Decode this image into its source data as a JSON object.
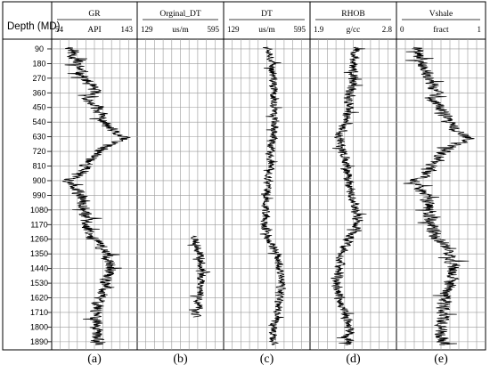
{
  "chart_data": {
    "type": "line",
    "depth_axis": {
      "label": "Depth (MD)",
      "ticks": [
        90,
        180,
        270,
        360,
        450,
        540,
        630,
        720,
        810,
        900,
        990,
        1080,
        1170,
        1260,
        1350,
        1440,
        1530,
        1620,
        1710,
        1800,
        1890
      ],
      "range": [
        30,
        1940
      ],
      "direction": "down"
    },
    "tracks": [
      {
        "id": "a",
        "caption": "(a)",
        "header": {
          "name": "GR",
          "min": "54",
          "unit": "API",
          "max": "143"
        },
        "xlim": [
          54,
          143
        ],
        "depth_range": [
          80,
          1910
        ],
        "profile": [
          [
            80,
            74
          ],
          [
            180,
            80
          ],
          [
            270,
            88
          ],
          [
            360,
            100
          ],
          [
            400,
            88
          ],
          [
            450,
            102
          ],
          [
            540,
            108
          ],
          [
            600,
            118
          ],
          [
            640,
            130
          ],
          [
            700,
            106
          ],
          [
            810,
            90
          ],
          [
            870,
            84
          ],
          [
            900,
            70
          ],
          [
            990,
            84
          ],
          [
            1080,
            90
          ],
          [
            1170,
            90
          ],
          [
            1260,
            98
          ],
          [
            1350,
            112
          ],
          [
            1440,
            114
          ],
          [
            1530,
            110
          ],
          [
            1620,
            104
          ],
          [
            1710,
            102
          ],
          [
            1800,
            100
          ],
          [
            1910,
            102
          ]
        ],
        "noise": 9,
        "seed": 11
      },
      {
        "id": "b",
        "caption": "(b)",
        "header": {
          "name": "Orginal_DT",
          "min": "129",
          "unit": "us/m",
          "max": "595"
        },
        "xlim": [
          129,
          595
        ],
        "depth_range": [
          1240,
          1740
        ],
        "profile": [
          [
            1240,
            440
          ],
          [
            1300,
            450
          ],
          [
            1350,
            470
          ],
          [
            1440,
            480
          ],
          [
            1530,
            475
          ],
          [
            1600,
            470
          ],
          [
            1660,
            455
          ],
          [
            1740,
            445
          ]
        ],
        "noise": 32,
        "seed": 23
      },
      {
        "id": "c",
        "caption": "(c)",
        "header": {
          "name": "DT",
          "min": "129",
          "unit": "us/m",
          "max": "595"
        },
        "xlim": [
          129,
          595
        ],
        "depth_range": [
          80,
          1910
        ],
        "profile": [
          [
            80,
            380
          ],
          [
            180,
            390
          ],
          [
            270,
            395
          ],
          [
            360,
            400
          ],
          [
            450,
            395
          ],
          [
            540,
            410
          ],
          [
            630,
            400
          ],
          [
            720,
            380
          ],
          [
            810,
            380
          ],
          [
            900,
            370
          ],
          [
            990,
            360
          ],
          [
            1080,
            355
          ],
          [
            1170,
            345
          ],
          [
            1260,
            370
          ],
          [
            1350,
            420
          ],
          [
            1440,
            430
          ],
          [
            1530,
            440
          ],
          [
            1620,
            430
          ],
          [
            1710,
            420
          ],
          [
            1800,
            400
          ],
          [
            1910,
            400
          ]
        ],
        "noise": 30,
        "seed": 37
      },
      {
        "id": "d",
        "caption": "(d)",
        "header": {
          "name": "RHOB",
          "min": "1.9",
          "unit": "g/cc",
          "max": "2.8"
        },
        "xlim": [
          1.9,
          2.8
        ],
        "depth_range": [
          80,
          1910
        ],
        "profile": [
          [
            80,
            2.4
          ],
          [
            180,
            2.35
          ],
          [
            270,
            2.34
          ],
          [
            360,
            2.32
          ],
          [
            450,
            2.3
          ],
          [
            540,
            2.28
          ],
          [
            630,
            2.2
          ],
          [
            720,
            2.24
          ],
          [
            810,
            2.28
          ],
          [
            900,
            2.3
          ],
          [
            990,
            2.34
          ],
          [
            1080,
            2.38
          ],
          [
            1170,
            2.4
          ],
          [
            1260,
            2.3
          ],
          [
            1350,
            2.22
          ],
          [
            1440,
            2.2
          ],
          [
            1530,
            2.18
          ],
          [
            1620,
            2.2
          ],
          [
            1710,
            2.26
          ],
          [
            1800,
            2.3
          ],
          [
            1910,
            2.3
          ]
        ],
        "noise": 0.07,
        "seed": 53
      },
      {
        "id": "e",
        "caption": "(e)",
        "header": {
          "name": "Vshale",
          "min": "0",
          "unit": "fract",
          "max": "1"
        },
        "xlim": [
          0,
          1
        ],
        "depth_range": [
          80,
          1910
        ],
        "profile": [
          [
            80,
            0.22
          ],
          [
            180,
            0.28
          ],
          [
            270,
            0.36
          ],
          [
            360,
            0.46
          ],
          [
            400,
            0.38
          ],
          [
            450,
            0.5
          ],
          [
            540,
            0.58
          ],
          [
            600,
            0.68
          ],
          [
            640,
            0.82
          ],
          [
            700,
            0.56
          ],
          [
            810,
            0.4
          ],
          [
            870,
            0.34
          ],
          [
            900,
            0.18
          ],
          [
            990,
            0.32
          ],
          [
            1080,
            0.38
          ],
          [
            1170,
            0.38
          ],
          [
            1260,
            0.46
          ],
          [
            1350,
            0.62
          ],
          [
            1440,
            0.64
          ],
          [
            1530,
            0.6
          ],
          [
            1620,
            0.54
          ],
          [
            1710,
            0.52
          ],
          [
            1800,
            0.5
          ],
          [
            1910,
            0.52
          ]
        ],
        "noise": 0.1,
        "seed": 71
      }
    ]
  }
}
